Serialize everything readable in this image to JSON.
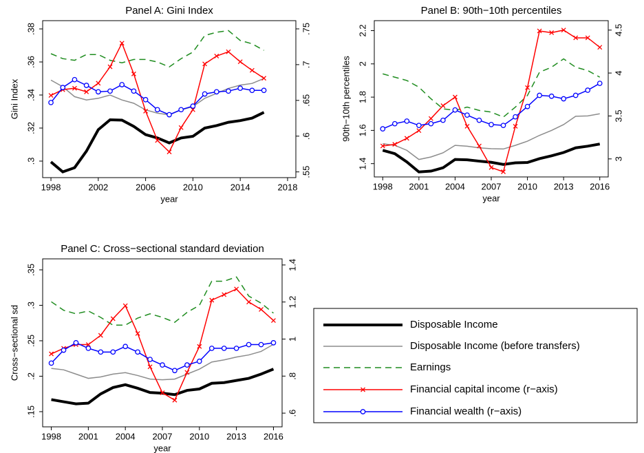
{
  "chart_data": [
    {
      "type": "line",
      "title": "Panel A: Gini Index",
      "xlabel": "year",
      "ylabel": "Gini Index",
      "x": [
        1998,
        1999,
        2000,
        2001,
        2002,
        2003,
        2004,
        2005,
        2006,
        2007,
        2008,
        2009,
        2010,
        2011,
        2012,
        2013,
        2014,
        2015,
        2016
      ],
      "xlim": [
        1997.3,
        2018.7
      ],
      "xticks": [
        1998,
        2002,
        2006,
        2010,
        2014,
        2018
      ],
      "ylim": [
        0.29,
        0.385
      ],
      "yticks": [
        {
          "value": 0.3,
          "label": ".3"
        },
        {
          "value": 0.32,
          "label": ".32"
        },
        {
          "value": 0.34,
          "label": ".34"
        },
        {
          "value": 0.36,
          "label": ".36"
        },
        {
          "value": 0.38,
          "label": ".38"
        }
      ],
      "y2lim": [
        0.542,
        0.7615
      ],
      "y2ticks": [
        {
          "value": 0.55,
          "label": ".55"
        },
        {
          "value": 0.6,
          "label": ".6"
        },
        {
          "value": 0.65,
          "label": ".65"
        },
        {
          "value": 0.7,
          "label": ".7"
        },
        {
          "value": 0.75,
          "label": ".75"
        }
      ],
      "series": [
        {
          "name": "Disposable Income",
          "color": "#000000",
          "linewidth": 4,
          "values": [
            0.2995,
            0.2935,
            0.296,
            0.306,
            0.319,
            0.325,
            0.3248,
            0.321,
            0.316,
            0.314,
            0.311,
            0.314,
            0.315,
            0.32,
            0.3215,
            0.3235,
            0.3245,
            0.326,
            0.3295
          ]
        },
        {
          "name": "Disposable Income (before transfers)",
          "color": "#8c8c8c",
          "linewidth": 1.5,
          "values": [
            0.349,
            0.345,
            0.339,
            0.337,
            0.338,
            0.34,
            0.337,
            0.335,
            0.331,
            0.329,
            0.328,
            0.331,
            0.333,
            0.338,
            0.341,
            0.344,
            0.346,
            0.347,
            0.35
          ]
        },
        {
          "name": "Earnings",
          "color": "#1e8c1e",
          "linewidth": 1.5,
          "dash": true,
          "values": [
            0.365,
            0.362,
            0.361,
            0.3645,
            0.3645,
            0.361,
            0.3595,
            0.3615,
            0.3615,
            0.36,
            0.357,
            0.362,
            0.366,
            0.376,
            0.378,
            0.379,
            0.373,
            0.371,
            0.367
          ]
        },
        {
          "name": "Financial capital income (r−axis)",
          "color": "#ff0000",
          "linewidth": 1.5,
          "marker": "x",
          "axis": "y2",
          "values": [
            0.657,
            0.665,
            0.667,
            0.662,
            0.674,
            0.697,
            0.73,
            0.687,
            0.635,
            0.594,
            0.578,
            0.612,
            0.637,
            0.701,
            0.712,
            0.718,
            0.704,
            0.692,
            0.681
          ]
        },
        {
          "name": "Financial wealth (r−axis)",
          "color": "#0000ff",
          "linewidth": 1.5,
          "marker": "circle",
          "axis": "y2",
          "values": [
            0.647,
            0.668,
            0.679,
            0.671,
            0.662,
            0.663,
            0.672,
            0.663,
            0.651,
            0.637,
            0.63,
            0.637,
            0.642,
            0.659,
            0.662,
            0.663,
            0.667,
            0.664,
            0.664
          ]
        }
      ]
    },
    {
      "type": "line",
      "title": "Panel B: 90th−10th percentiles",
      "xlabel": "year",
      "ylabel": "90th−10th percentiles",
      "x": [
        1998,
        1999,
        2000,
        2001,
        2002,
        2003,
        2004,
        2005,
        2006,
        2007,
        2008,
        2009,
        2010,
        2011,
        2012,
        2013,
        2014,
        2015,
        2016
      ],
      "xlim": [
        1997.3,
        2016.7
      ],
      "xticks": [
        1998,
        2001,
        2004,
        2007,
        2010,
        2013,
        2016
      ],
      "ylim": [
        1.32,
        2.26
      ],
      "yticks": [
        1.4,
        1.6,
        1.8,
        2,
        2.2
      ],
      "y2lim": [
        2.79,
        4.61
      ],
      "y2ticks": [
        3,
        3.5,
        4,
        4.5
      ],
      "series": [
        {
          "color": "#000000",
          "linewidth": 4,
          "values": [
            1.48,
            1.46,
            1.41,
            1.35,
            1.355,
            1.375,
            1.425,
            1.423,
            1.415,
            1.408,
            1.395,
            1.405,
            1.407,
            1.43,
            1.447,
            1.467,
            1.495,
            1.505,
            1.518
          ]
        },
        {
          "color": "#8c8c8c",
          "linewidth": 1.5,
          "values": [
            1.52,
            1.51,
            1.48,
            1.425,
            1.44,
            1.465,
            1.51,
            1.505,
            1.495,
            1.49,
            1.488,
            1.51,
            1.535,
            1.57,
            1.6,
            1.635,
            1.685,
            1.687,
            1.7
          ]
        },
        {
          "color": "#1e8c1e",
          "linewidth": 1.5,
          "dash": true,
          "values": [
            1.94,
            1.92,
            1.9,
            1.86,
            1.79,
            1.73,
            1.72,
            1.74,
            1.72,
            1.71,
            1.68,
            1.74,
            1.81,
            1.95,
            1.98,
            2.03,
            1.98,
            1.96,
            1.92
          ]
        },
        {
          "color": "#ff0000",
          "linewidth": 1.5,
          "marker": "x",
          "axis": "y2",
          "values": [
            3.15,
            3.17,
            3.24,
            3.33,
            3.47,
            3.62,
            3.72,
            3.38,
            3.15,
            2.9,
            2.85,
            3.38,
            3.83,
            4.49,
            4.47,
            4.5,
            4.41,
            4.41,
            4.3
          ]
        },
        {
          "color": "#0000ff",
          "linewidth": 1.5,
          "marker": "circle",
          "axis": "y2",
          "values": [
            3.35,
            3.41,
            3.44,
            3.39,
            3.41,
            3.45,
            3.57,
            3.51,
            3.45,
            3.4,
            3.39,
            3.49,
            3.61,
            3.74,
            3.73,
            3.7,
            3.74,
            3.8,
            3.88
          ]
        }
      ]
    },
    {
      "type": "line",
      "title": "Panel C: Cross−sectional standard deviation",
      "xlabel": "year",
      "ylabel": "Cross−sectional sd",
      "x": [
        1998,
        1999,
        2000,
        2001,
        2002,
        2003,
        2004,
        2005,
        2006,
        2007,
        2008,
        2009,
        2010,
        2011,
        2012,
        2013,
        2014,
        2015,
        2016
      ],
      "xlim": [
        1997.3,
        2016.7
      ],
      "xticks": [
        1998,
        2001,
        2004,
        2007,
        2010,
        2013,
        2016
      ],
      "ylim": [
        0.1286,
        0.3655
      ],
      "yticks": [
        {
          "value": 0.15,
          "label": ".15"
        },
        {
          "value": 0.2,
          "label": ".2"
        },
        {
          "value": 0.25,
          "label": ".25"
        },
        {
          "value": 0.3,
          "label": ".3"
        },
        {
          "value": 0.35,
          "label": ".35"
        }
      ],
      "y2lim": [
        0.526,
        1.433
      ],
      "y2ticks": [
        {
          "value": 0.6,
          "label": ".6"
        },
        {
          "value": 0.8,
          "label": ".8"
        },
        1,
        1.2,
        1.4
      ],
      "series": [
        {
          "color": "#000000",
          "linewidth": 4,
          "values": [
            0.167,
            0.164,
            0.161,
            0.162,
            0.175,
            0.184,
            0.188,
            0.183,
            0.177,
            0.176,
            0.174,
            0.18,
            0.182,
            0.19,
            0.191,
            0.194,
            0.197,
            0.203,
            0.21
          ]
        },
        {
          "color": "#8c8c8c",
          "linewidth": 1.5,
          "values": [
            0.211,
            0.209,
            0.203,
            0.197,
            0.199,
            0.203,
            0.205,
            0.201,
            0.196,
            0.195,
            0.196,
            0.203,
            0.21,
            0.22,
            0.223,
            0.227,
            0.23,
            0.235,
            0.245
          ]
        },
        {
          "color": "#1e8c1e",
          "linewidth": 1.5,
          "dash": true,
          "values": [
            0.305,
            0.293,
            0.288,
            0.292,
            0.283,
            0.272,
            0.272,
            0.282,
            0.288,
            0.283,
            0.276,
            0.29,
            0.3,
            0.334,
            0.334,
            0.34,
            0.313,
            0.303,
            0.289
          ]
        },
        {
          "color": "#ff0000",
          "linewidth": 1.5,
          "marker": "x",
          "axis": "y2",
          "values": [
            0.92,
            0.95,
            0.97,
            0.97,
            1.02,
            1.11,
            1.18,
            1.03,
            0.85,
            0.71,
            0.67,
            0.82,
            0.96,
            1.21,
            1.24,
            1.27,
            1.2,
            1.16,
            1.1
          ]
        },
        {
          "color": "#0000ff",
          "linewidth": 1.5,
          "marker": "circle",
          "axis": "y2",
          "values": [
            0.87,
            0.94,
            0.98,
            0.95,
            0.93,
            0.93,
            0.96,
            0.93,
            0.89,
            0.86,
            0.83,
            0.86,
            0.88,
            0.95,
            0.95,
            0.95,
            0.97,
            0.97,
            0.98
          ]
        }
      ]
    }
  ]
}
